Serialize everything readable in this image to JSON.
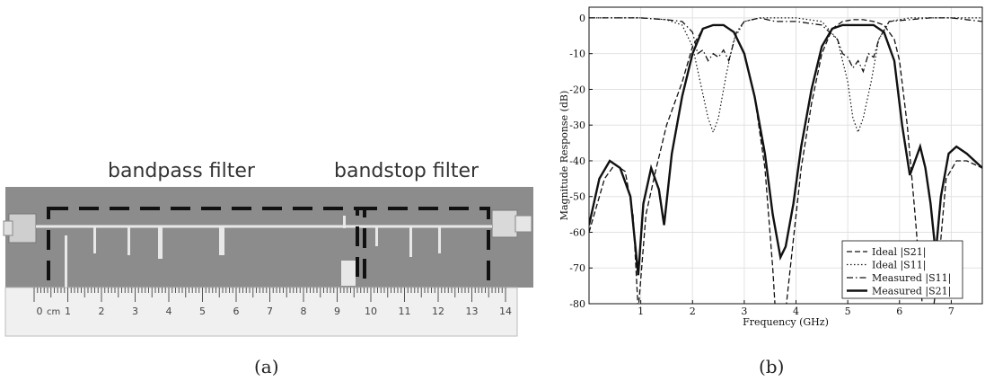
{
  "photo": {
    "bandpass_label": "bandpass filter",
    "bandstop_label": "bandstop filter",
    "ruler_unit": "cm",
    "ruler_numbers": [
      "0",
      "1",
      "2",
      "3",
      "4",
      "5",
      "6",
      "7",
      "8",
      "9",
      "10",
      "11",
      "12",
      "13",
      "14"
    ],
    "panel_label": "(a)"
  },
  "chart_panel_label": "(b)",
  "chart_data": {
    "type": "line",
    "xlabel": "Frequency (GHz)",
    "ylabel": "Magnitude Response (dB)",
    "xlim": [
      0,
      7.6
    ],
    "ylim": [
      -80,
      3
    ],
    "xticks": [
      1,
      2,
      3,
      4,
      5,
      6,
      7
    ],
    "yticks": [
      0,
      -10,
      -20,
      -30,
      -40,
      -50,
      -60,
      -70,
      -80
    ],
    "legend_position": "bottom-right",
    "series": [
      {
        "name": "Ideal |S21|",
        "style": "dashed",
        "x": [
          0.0,
          0.3,
          0.5,
          0.7,
          0.85,
          0.95,
          1.1,
          1.3,
          1.5,
          1.8,
          2.0,
          2.2,
          2.4,
          2.6,
          2.8,
          3.0,
          3.2,
          3.4,
          3.55,
          3.6,
          3.7,
          3.8,
          3.95,
          4.1,
          4.3,
          4.5,
          4.7,
          4.9,
          5.1,
          5.3,
          5.5,
          5.7,
          5.9,
          6.0,
          6.15,
          6.3,
          6.45,
          6.55,
          6.65,
          6.75,
          6.9,
          7.1,
          7.3,
          7.6
        ],
        "y": [
          -60,
          -45,
          -41,
          -43,
          -55,
          -82,
          -55,
          -42,
          -30,
          -18,
          -8,
          -3,
          -2,
          -2,
          -4,
          -10,
          -22,
          -42,
          -70,
          -82,
          -82,
          -82,
          -62,
          -42,
          -24,
          -10,
          -3,
          -1,
          -0.5,
          -0.5,
          -1,
          -2,
          -6,
          -12,
          -30,
          -55,
          -82,
          -82,
          -82,
          -70,
          -45,
          -40,
          -40,
          -42
        ]
      },
      {
        "name": "Ideal |S11|",
        "style": "dotted",
        "x": [
          0.0,
          0.5,
          1.0,
          1.5,
          1.8,
          2.0,
          2.15,
          2.3,
          2.4,
          2.5,
          2.65,
          2.8,
          3.0,
          3.3,
          3.6,
          4.0,
          4.5,
          4.8,
          5.0,
          5.1,
          5.2,
          5.3,
          5.45,
          5.6,
          5.8,
          6.2,
          6.6,
          7.0,
          7.6
        ],
        "y": [
          0,
          0,
          0,
          -0.5,
          -2,
          -8,
          -18,
          -28,
          -32,
          -28,
          -16,
          -6,
          -1,
          0,
          0,
          0,
          -1,
          -6,
          -18,
          -28,
          -32,
          -28,
          -18,
          -6,
          -1,
          0,
          0,
          0,
          0
        ]
      },
      {
        "name": "Measured |S11|",
        "style": "dashdot",
        "x": [
          0.0,
          0.5,
          1.0,
          1.5,
          1.8,
          2.0,
          2.1,
          2.2,
          2.3,
          2.4,
          2.5,
          2.6,
          2.7,
          2.85,
          3.0,
          3.3,
          3.6,
          4.0,
          4.5,
          4.8,
          4.9,
          5.0,
          5.1,
          5.2,
          5.3,
          5.4,
          5.5,
          5.6,
          5.8,
          6.2,
          6.6,
          7.0,
          7.6
        ],
        "y": [
          0,
          0,
          0,
          -0.5,
          -1,
          -4,
          -10,
          -9,
          -12,
          -10,
          -11,
          -9,
          -12,
          -4,
          -1,
          0,
          -1,
          -1,
          -2,
          -6,
          -10,
          -11,
          -14,
          -12,
          -15,
          -10,
          -11,
          -6,
          -1,
          -0.5,
          0,
          0,
          -1
        ]
      },
      {
        "name": "Measured |S21|",
        "style": "solid",
        "x": [
          0.0,
          0.2,
          0.4,
          0.6,
          0.8,
          0.95,
          1.05,
          1.2,
          1.35,
          1.45,
          1.6,
          1.8,
          2.0,
          2.2,
          2.4,
          2.6,
          2.8,
          3.0,
          3.2,
          3.4,
          3.55,
          3.7,
          3.8,
          3.95,
          4.1,
          4.3,
          4.5,
          4.7,
          4.9,
          5.1,
          5.3,
          5.5,
          5.7,
          5.9,
          6.05,
          6.2,
          6.4,
          6.5,
          6.6,
          6.7,
          6.8,
          6.95,
          7.1,
          7.3,
          7.6
        ],
        "y": [
          -58,
          -45,
          -40,
          -42,
          -50,
          -72,
          -52,
          -42,
          -48,
          -58,
          -38,
          -22,
          -10,
          -3,
          -2,
          -2,
          -4,
          -10,
          -22,
          -38,
          -55,
          -67,
          -64,
          -52,
          -36,
          -20,
          -8,
          -3,
          -2,
          -2,
          -2,
          -2,
          -4,
          -12,
          -30,
          -44,
          -36,
          -42,
          -52,
          -66,
          -50,
          -38,
          -36,
          -38,
          -42
        ]
      }
    ]
  }
}
